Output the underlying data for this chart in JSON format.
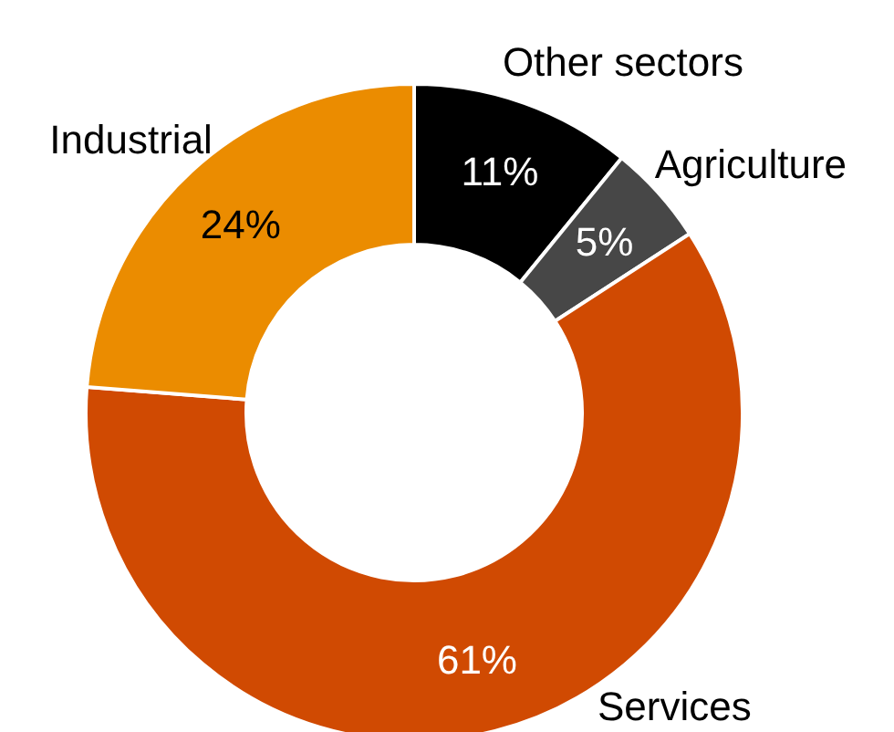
{
  "chart_data": {
    "type": "donut",
    "categories": [
      "Other sectors",
      "Agriculture",
      "Services",
      "Industrial"
    ],
    "values": [
      11,
      5,
      61,
      24
    ],
    "colors": [
      "#000000",
      "#474747",
      "#d04a02",
      "#eb8c00"
    ],
    "value_labels": [
      "11%",
      "5%",
      "61%",
      "24%"
    ]
  }
}
